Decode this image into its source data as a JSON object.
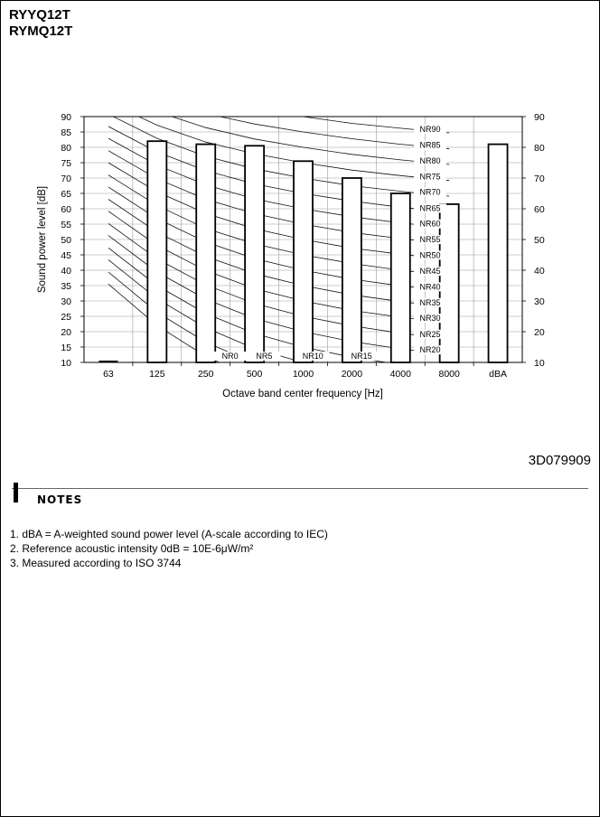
{
  "header": {
    "models": [
      "RYYQ12T",
      "RYMQ12T"
    ]
  },
  "document_number": "3D079909",
  "notes": {
    "title": "NOTES",
    "items": [
      "1.  dBA = A-weighted sound power level (A-scale according to IEC)",
      "2.  Reference acoustic intensity 0dB = 10E-6μW/m²",
      "3.  Measured according to ISO 3744"
    ]
  },
  "chart_data": {
    "type": "bar",
    "xlabel": "Octave band center frequency [Hz]",
    "ylabel": "Sound power level [dB]",
    "ylim": [
      10,
      90
    ],
    "ytick_step": 5,
    "right_ticks": [
      10,
      20,
      30,
      40,
      50,
      60,
      70,
      80,
      90
    ],
    "grid": true,
    "categories": [
      "63",
      "125",
      "250",
      "500",
      "1000",
      "2000",
      "4000",
      "8000",
      "dBA"
    ],
    "values": [
      10,
      82,
      81,
      80.5,
      75.5,
      70,
      65,
      61.5,
      81
    ],
    "nr_curves": [
      {
        "label": "NR0",
        "values": [
          35.5,
          22,
          12,
          4.8,
          0,
          -3.5,
          -6.1,
          -8
        ]
      },
      {
        "label": "NR5",
        "values": [
          39.4,
          26.3,
          16.6,
          9.7,
          5,
          1.6,
          -1,
          -2.8
        ]
      },
      {
        "label": "NR10",
        "values": [
          43.4,
          30.7,
          21.3,
          14.5,
          10,
          6.6,
          4.2,
          2.3
        ]
      },
      {
        "label": "NR15",
        "values": [
          47.3,
          35,
          25.9,
          19.4,
          15,
          11.7,
          9.3,
          7.4
        ]
      },
      {
        "label": "NR20",
        "values": [
          51.3,
          39.4,
          30.6,
          24.3,
          20,
          16.8,
          14.4,
          12.6
        ]
      },
      {
        "label": "NR25",
        "values": [
          55.2,
          43.7,
          35.2,
          29.2,
          25,
          21.9,
          19.5,
          17.7
        ]
      },
      {
        "label": "NR30",
        "values": [
          59.2,
          48.1,
          39.9,
          34,
          30,
          26.9,
          24.7,
          22.9
        ]
      },
      {
        "label": "NR35",
        "values": [
          63.1,
          52.4,
          44.5,
          38.9,
          35,
          32,
          29.8,
          28
        ]
      },
      {
        "label": "NR40",
        "values": [
          67.1,
          56.8,
          49.2,
          43.8,
          40,
          37.1,
          34.9,
          33.2
        ]
      },
      {
        "label": "NR45",
        "values": [
          71,
          61.1,
          53.6,
          48.6,
          45,
          42.2,
          40,
          38.3
        ]
      },
      {
        "label": "NR50",
        "values": [
          75,
          65.5,
          58.5,
          53.5,
          50,
          47.2,
          45.2,
          43.5
        ]
      },
      {
        "label": "NR55",
        "values": [
          78.9,
          69.8,
          63.1,
          58.4,
          55,
          52.3,
          50.3,
          48.6
        ]
      },
      {
        "label": "NR60",
        "values": [
          82.9,
          74.2,
          67.8,
          63.2,
          60,
          57.4,
          55.4,
          53.8
        ]
      },
      {
        "label": "NR65",
        "values": [
          86.8,
          78.5,
          72.4,
          68.1,
          65,
          62.5,
          60.5,
          58.9
        ]
      },
      {
        "label": "NR70",
        "values": [
          90.8,
          82.9,
          77.1,
          73,
          70,
          67.5,
          65.7,
          64.1
        ]
      },
      {
        "label": "NR75",
        "values": [
          94.7,
          87.2,
          81.7,
          77.9,
          75,
          72.6,
          70.8,
          69.2
        ]
      },
      {
        "label": "NR80",
        "values": [
          98.7,
          91.6,
          86.4,
          82.7,
          80,
          77.7,
          75.9,
          74.4
        ]
      },
      {
        "label": "NR85",
        "values": [
          102.6,
          95.9,
          91,
          87.6,
          85,
          82.8,
          81,
          79.5
        ]
      },
      {
        "label": "NR90",
        "values": [
          106.6,
          100.3,
          95.7,
          92.5,
          90,
          87.8,
          86.2,
          84.7
        ]
      }
    ]
  }
}
